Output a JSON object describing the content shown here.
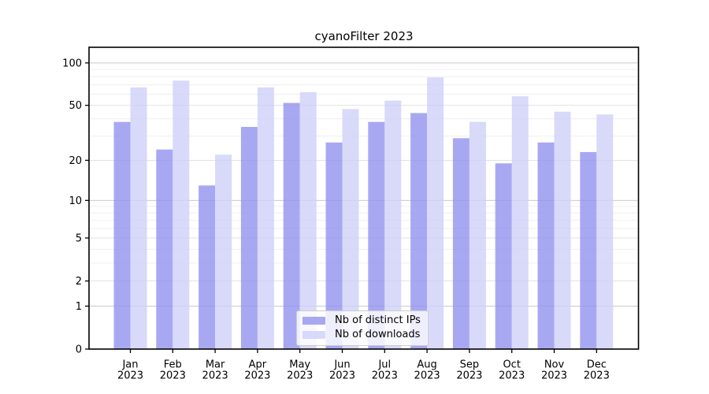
{
  "chart_data": {
    "type": "bar",
    "title": "cyanoFilter 2023",
    "categories": [
      "Jan 2023",
      "Feb 2023",
      "Mar 2023",
      "Apr 2023",
      "May 2023",
      "Jun 2023",
      "Jul 2023",
      "Aug 2023",
      "Sep 2023",
      "Oct 2023",
      "Nov 2023",
      "Dec 2023"
    ],
    "series": [
      {
        "name": "Nb of distinct IPs",
        "color": "#9292ef",
        "values": [
          38,
          24,
          13,
          35,
          52,
          27,
          38,
          44,
          29,
          19,
          27,
          23
        ]
      },
      {
        "name": "Nb of downloads",
        "color": "#cfcff9",
        "values": [
          67,
          75,
          22,
          67,
          62,
          47,
          54,
          79,
          38,
          58,
          45,
          43
        ]
      }
    ],
    "xlabel": "",
    "ylabel": "",
    "yscale": "symlog",
    "y_ticks": [
      0,
      1,
      2,
      5,
      10,
      20,
      50,
      100
    ],
    "y_minor_ticks": [
      3,
      4,
      6,
      7,
      8,
      9,
      30,
      40,
      60,
      70,
      80,
      90
    ],
    "ylim": [
      0,
      129
    ],
    "grid": true,
    "legend_position": "bottom-center"
  },
  "colors": {
    "grid_major": "#c9c9c9",
    "grid_mid": "#e2e2e2",
    "grid_minor": "#efefef",
    "axis_frame": "#000000"
  }
}
